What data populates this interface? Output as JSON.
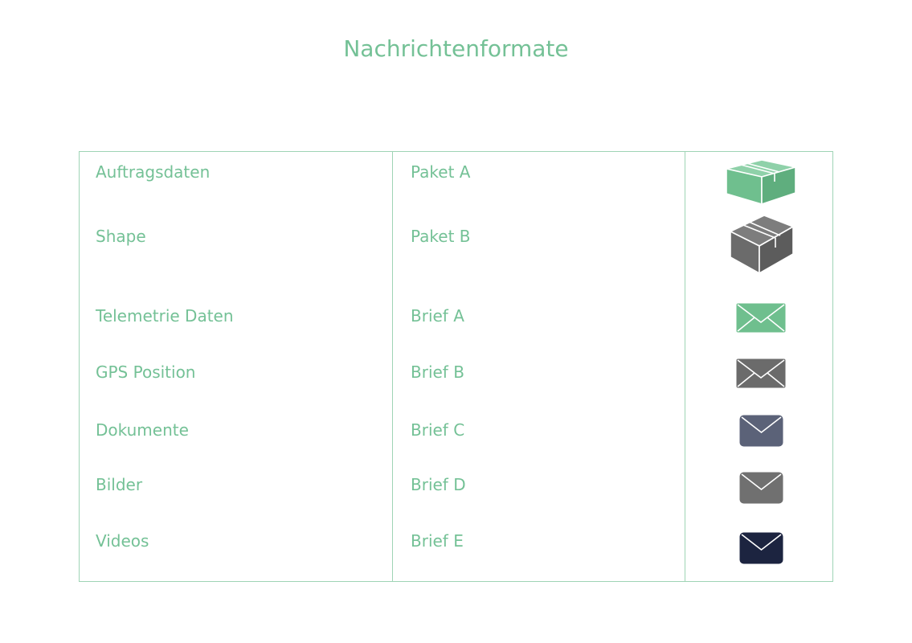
{
  "title": "Nachrichtenformate",
  "rows": [
    {
      "type": "Auftragsdaten",
      "format": "Paket A",
      "icon": "box-icon",
      "color": "#6fbf8e"
    },
    {
      "type": "Shape",
      "format": "Paket B",
      "icon": "box-icon",
      "color": "#6b6b6b"
    },
    {
      "type": "Telemetrie Daten",
      "format": "Brief A",
      "icon": "envelope-icon",
      "color": "#6fbf8e"
    },
    {
      "type": "GPS Position",
      "format": "Brief B",
      "icon": "envelope-icon",
      "color": "#6b6b6b"
    },
    {
      "type": "Dokumente",
      "format": "Brief C",
      "icon": "envelope-icon",
      "color": "#5b6278"
    },
    {
      "type": "Bilder",
      "format": "Brief D",
      "icon": "envelope-icon",
      "color": "#707070"
    },
    {
      "type": "Videos",
      "format": "Brief E",
      "icon": "envelope-icon",
      "color": "#1c2440"
    }
  ]
}
